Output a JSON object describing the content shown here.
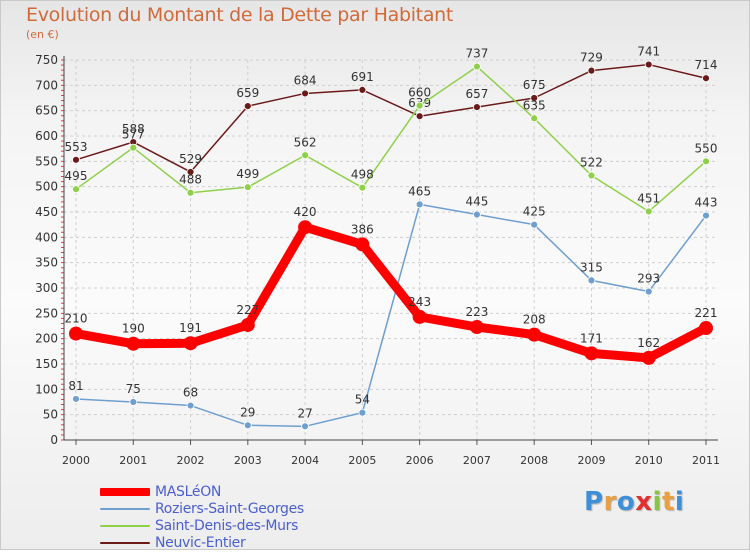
{
  "title": "Evolution du Montant de la Dette par Habitant",
  "unit_label": "(en €)",
  "brand": {
    "text": "Proxiti",
    "letters": [
      {
        "ch": "P",
        "color": "#3d8fd8"
      },
      {
        "ch": "r",
        "color": "#e8a040"
      },
      {
        "ch": "o",
        "color": "#3d8fd8"
      },
      {
        "ch": "x",
        "color": "#e23030"
      },
      {
        "ch": "i",
        "color": "#8bc34a"
      },
      {
        "ch": "t",
        "color": "#e8a040"
      },
      {
        "ch": "i",
        "color": "#3d8fd8"
      }
    ]
  },
  "chart_data": {
    "type": "line",
    "title": "Evolution du Montant de la Dette par Habitant",
    "ylabel": "(en €)",
    "xlabel": "",
    "x": [
      "2000",
      "2001",
      "2002",
      "2003",
      "2004",
      "2005",
      "2006",
      "2007",
      "2008",
      "2009",
      "2010",
      "2011"
    ],
    "ylim": [
      0,
      750
    ],
    "yticks": [
      0,
      50,
      100,
      150,
      200,
      250,
      300,
      350,
      400,
      450,
      500,
      550,
      600,
      650,
      700,
      750
    ],
    "grid": true,
    "legend_position": "bottom-left",
    "series": [
      {
        "name": "MASLéON",
        "color": "#ff0000",
        "emphasis": true,
        "values": [
          210,
          190,
          191,
          227,
          420,
          386,
          243,
          223,
          208,
          171,
          162,
          221
        ]
      },
      {
        "name": "Roziers-Saint-Georges",
        "color": "#6f9fcf",
        "values": [
          81,
          75,
          68,
          29,
          27,
          54,
          465,
          445,
          425,
          315,
          293,
          443
        ]
      },
      {
        "name": "Saint-Denis-des-Murs",
        "color": "#8fd04a",
        "values": [
          495,
          577,
          488,
          499,
          562,
          498,
          660,
          737,
          635,
          522,
          451,
          550
        ]
      },
      {
        "name": "Neuvic-Entier",
        "color": "#6b1a1a",
        "values": [
          553,
          588,
          529,
          659,
          684,
          691,
          639,
          657,
          675,
          729,
          741,
          714
        ]
      }
    ]
  }
}
